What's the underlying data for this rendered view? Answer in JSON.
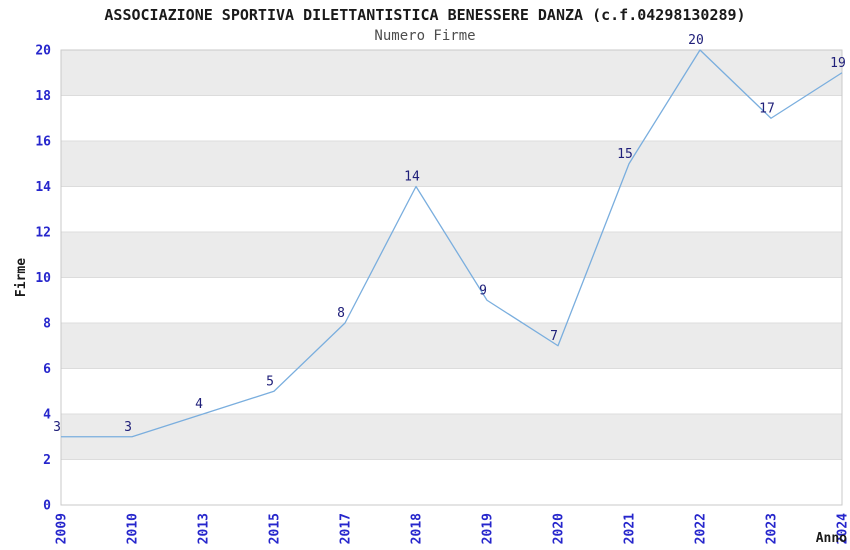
{
  "chart_data": {
    "type": "line",
    "title": "ASSOCIAZIONE SPORTIVA DILETTANTISTICA BENESSERE DANZA (c.f.04298130289)",
    "subtitle": "Numero Firme",
    "xlabel": "Anno",
    "ylabel": "Firme",
    "categories": [
      "2009",
      "2010",
      "2013",
      "2015",
      "2017",
      "2018",
      "2019",
      "2020",
      "2021",
      "2022",
      "2023",
      "2024"
    ],
    "values": [
      3,
      3,
      4,
      5,
      8,
      14,
      9,
      7,
      15,
      20,
      17,
      19
    ],
    "ylim": [
      0,
      20
    ],
    "ytick_step": 2,
    "grid": true,
    "legend_position": "none",
    "x_tick_rotation": -90,
    "colors": {
      "line": "#7aaede",
      "tick_label": "#2626cc",
      "data_label": "#20207a",
      "band_fill": "#ebebeb",
      "plot_border": "#c9c9c9",
      "grid_line": "#dcdcdc",
      "title_text": "#1a1a1a",
      "subtitle_text": "#4d4d4d",
      "background": "#ffffff"
    }
  }
}
